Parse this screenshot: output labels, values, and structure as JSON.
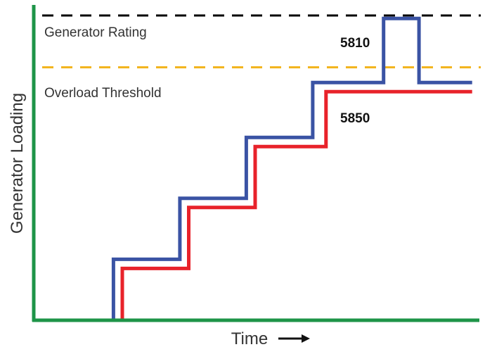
{
  "chart_data": {
    "type": "line",
    "title": "",
    "xlabel": "Time",
    "ylabel": "Generator Loading",
    "xlim": [
      0,
      100
    ],
    "ylim": [
      0,
      100
    ],
    "grid": false,
    "axis_color": "#1e9448",
    "reference_lines": [
      {
        "label": "Generator Rating",
        "y": 100,
        "color": "#000000",
        "style": "dashed"
      },
      {
        "label": "Overload Threshold",
        "y": 83,
        "color": "#f2b41c",
        "style": "dashed"
      }
    ],
    "series": [
      {
        "name": "5810",
        "color": "#3a53a4",
        "step_points": [
          [
            18,
            0
          ],
          [
            18,
            20
          ],
          [
            33,
            20
          ],
          [
            33,
            40
          ],
          [
            48,
            40
          ],
          [
            48,
            60
          ],
          [
            63,
            60
          ],
          [
            63,
            78
          ],
          [
            79,
            78
          ],
          [
            79,
            99
          ],
          [
            87,
            99
          ],
          [
            87,
            78
          ],
          [
            99,
            78
          ]
        ]
      },
      {
        "name": "5850",
        "color": "#e8222a",
        "step_points": [
          [
            20,
            0
          ],
          [
            20,
            17
          ],
          [
            35,
            17
          ],
          [
            35,
            37
          ],
          [
            50,
            37
          ],
          [
            50,
            57
          ],
          [
            66,
            57
          ],
          [
            66,
            75
          ],
          [
            99,
            75
          ]
        ]
      }
    ]
  }
}
